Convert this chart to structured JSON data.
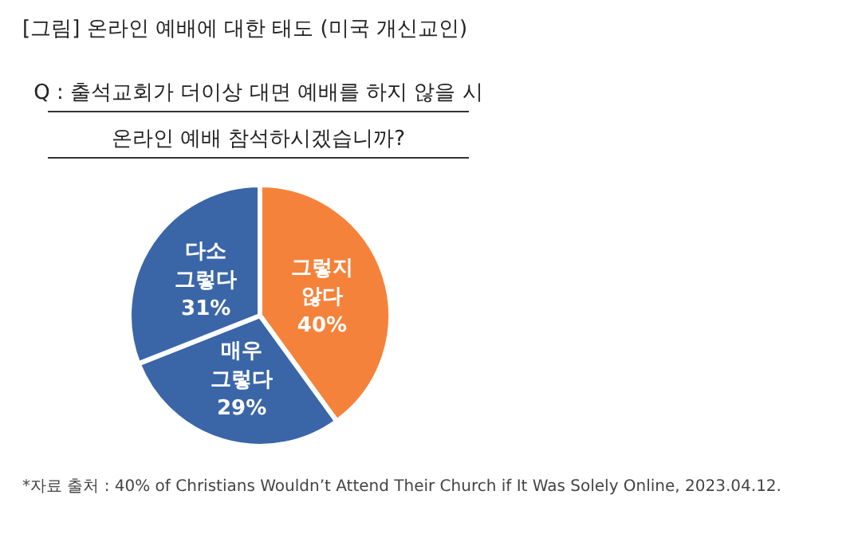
{
  "chart_data": {
    "type": "pie",
    "title": "[그림] 온라인 예배에 대한 태도 (미국 개신교인)",
    "subtitle": "Q : 출석교회가 더이상 대면 예배를 하지 않을 시\n온라인 예배 참석하시겠습니까?",
    "categories": [
      "그렇지 않다",
      "매우 그렇다",
      "다소 그렇다"
    ],
    "values": [
      40,
      29,
      31
    ],
    "value_labels": [
      "40%",
      "29%",
      "31%"
    ],
    "colors": [
      "#f5823a",
      "#3a66a8",
      "#3a66a8"
    ],
    "annotations": [
      "*자료 출처 : 40% of Christians Wouldn’t Attend Their Church if It Was Solely Online, 2023.04.12."
    ]
  }
}
